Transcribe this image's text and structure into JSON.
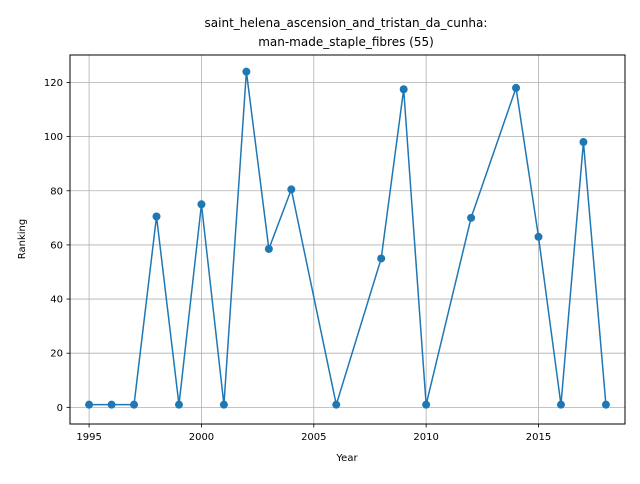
{
  "chart_data": {
    "type": "line",
    "title": [
      "saint_helena_ascension_and_tristan_da_cunha:",
      "man-made_staple_fibres (55)"
    ],
    "xlabel": "Year",
    "ylabel": "Ranking",
    "xlim": [
      1994.15,
      2018.85
    ],
    "ylim": [
      -6.15,
      130.15
    ],
    "xticks": [
      1995,
      2000,
      2005,
      2010,
      2015
    ],
    "yticks": [
      0,
      20,
      40,
      60,
      80,
      100,
      120
    ],
    "grid": true,
    "color": "#1f77b4",
    "x": [
      1995,
      1996,
      1997,
      1998,
      1999,
      2000,
      2001,
      2002,
      2003,
      2004,
      2006,
      2008,
      2009,
      2010,
      2012,
      2014,
      2015,
      2016,
      2017,
      2018
    ],
    "y": [
      1,
      1,
      1,
      70.5,
      1,
      75,
      1,
      124,
      58.5,
      80.5,
      1,
      55,
      117.5,
      1,
      70,
      118,
      63,
      1,
      98,
      1
    ]
  }
}
